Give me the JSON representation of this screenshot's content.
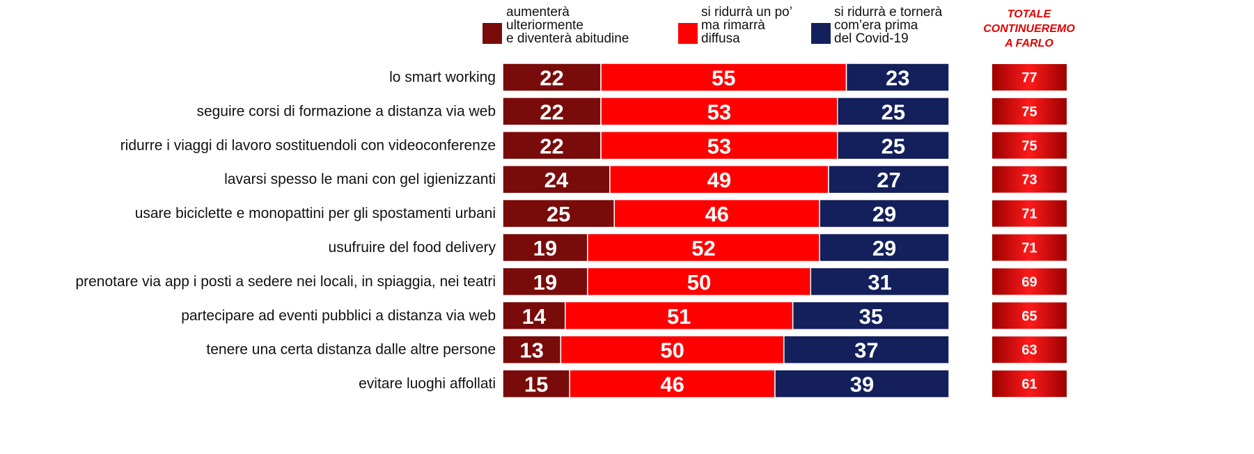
{
  "chart_data": {
    "type": "bar",
    "orientation": "horizontal",
    "stacked": true,
    "categories": [
      "lo smart working",
      "seguire corsi di formazione a distanza via web",
      "ridurre i viaggi di lavoro sostituendoli con videoconferenze",
      "lavarsi spesso le mani con gel igienizzanti",
      "usare biciclette e monopattini per gli spostamenti urbani",
      "usufruire del food delivery",
      "prenotare via app i posti a sedere nei locali, in spiaggia, nei teatri",
      "partecipare ad eventi pubblici a distanza via web",
      "tenere una certa distanza dalle altre persone",
      "evitare luoghi affollati"
    ],
    "series": [
      {
        "name": "aumenterà\nulteriormente\ne diventerà abitudine",
        "color": "#7a0b0b",
        "values": [
          22,
          22,
          22,
          24,
          25,
          19,
          19,
          14,
          13,
          15
        ]
      },
      {
        "name": "si ridurrà un po’\nma rimarrà\ndiffusa",
        "color": "#ff0000",
        "values": [
          55,
          53,
          53,
          49,
          46,
          52,
          50,
          51,
          50,
          46
        ]
      },
      {
        "name": "si ridurrà e tornerà\ncom’era prima\ndel Covid-19",
        "color": "#14205c",
        "values": [
          23,
          25,
          25,
          27,
          29,
          29,
          31,
          35,
          37,
          39
        ]
      }
    ],
    "totals": {
      "title": "TOTALE\nCONTINUEREMO\nA FARLO",
      "values": [
        77,
        75,
        75,
        73,
        71,
        71,
        69,
        65,
        63,
        61
      ]
    }
  }
}
